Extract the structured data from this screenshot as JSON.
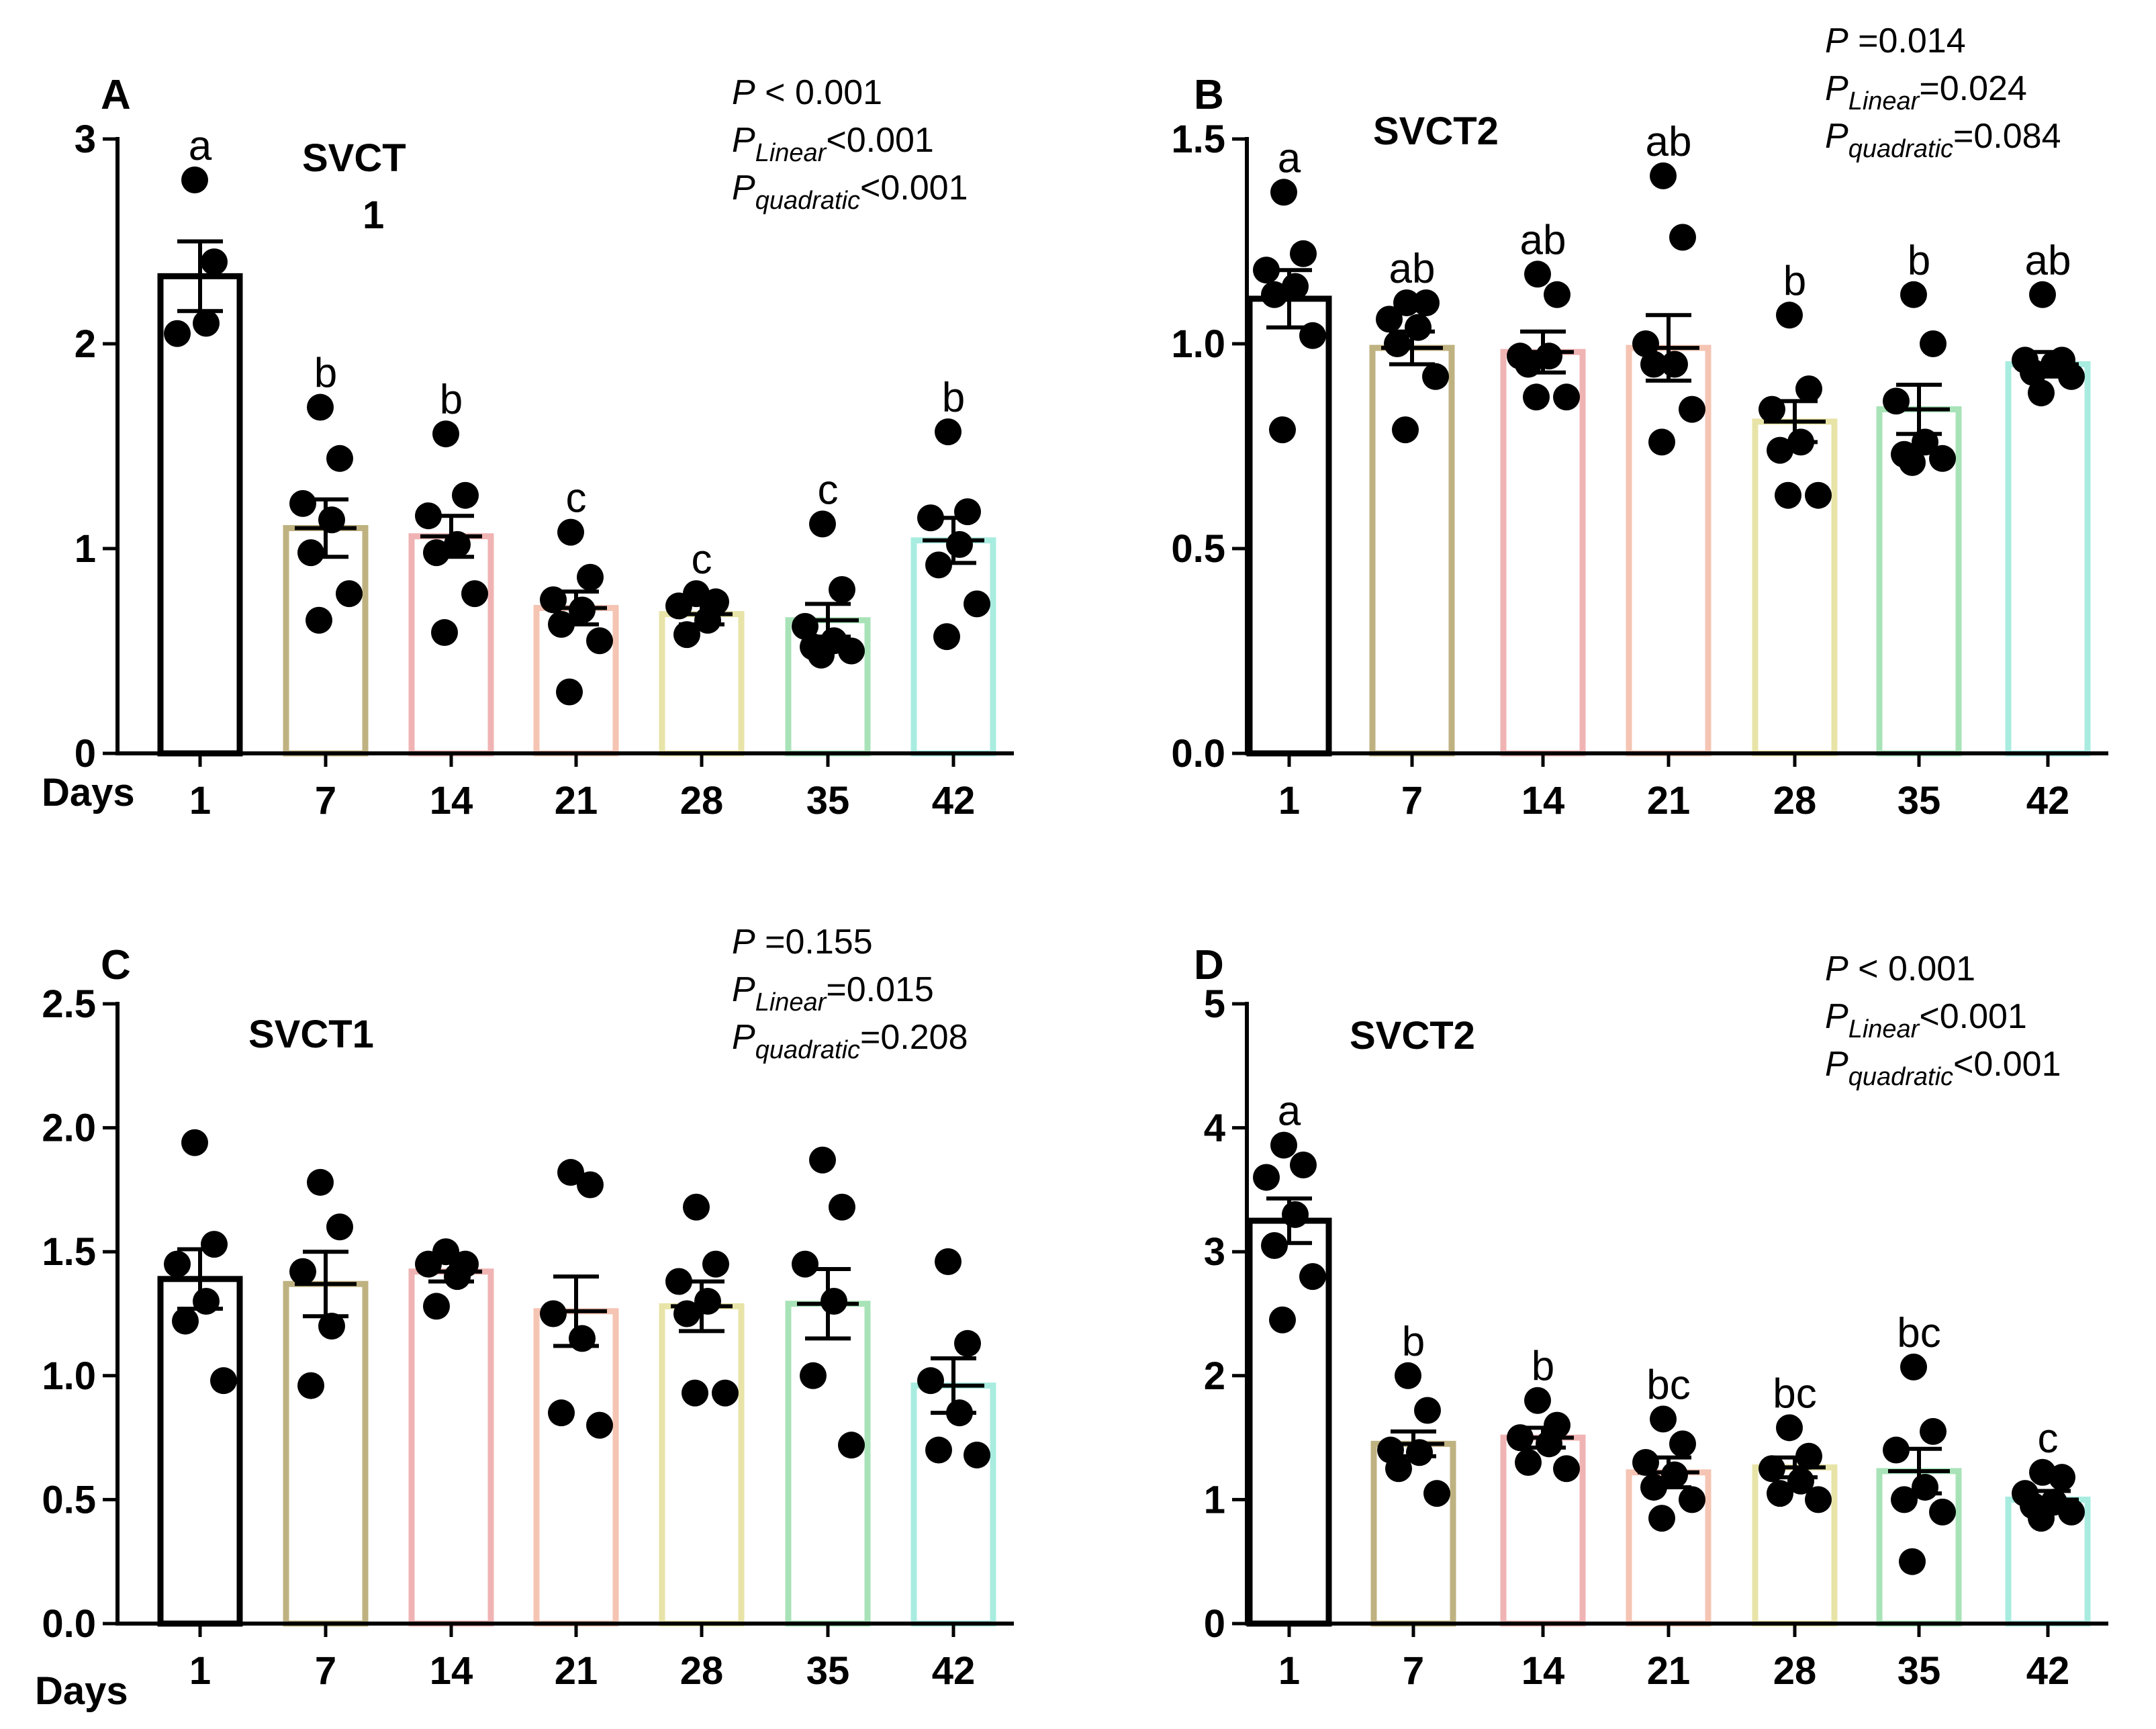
{
  "chart_data": [
    {
      "panel": "A",
      "type": "bar",
      "title": "SVCT",
      "title_line2": "1",
      "xlabel": "Days",
      "categories": [
        "1",
        "7",
        "14",
        "21",
        "28",
        "35",
        "42"
      ],
      "ylim": [
        0,
        3
      ],
      "yticks": [
        "0",
        "1",
        "2",
        "3"
      ],
      "yticks_values": [
        0,
        1,
        2,
        3
      ],
      "means": [
        2.33,
        1.1,
        1.06,
        0.71,
        0.68,
        0.65,
        1.04
      ],
      "sem": [
        0.17,
        0.14,
        0.1,
        0.08,
        0.05,
        0.08,
        0.11
      ],
      "points": [
        [
          2.8,
          2.4,
          2.05,
          2.1
        ],
        [
          1.69,
          1.44,
          1.22,
          1.14,
          0.98,
          0.78,
          0.65
        ],
        [
          1.56,
          1.26,
          1.16,
          1.02,
          0.98,
          0.78,
          0.59
        ],
        [
          1.08,
          0.86,
          0.75,
          0.7,
          0.63,
          0.55,
          0.3
        ],
        [
          0.78,
          0.74,
          0.72,
          0.65,
          0.58
        ],
        [
          1.12,
          0.8,
          0.62,
          0.55,
          0.52,
          0.5,
          0.48
        ],
        [
          1.57,
          1.18,
          1.15,
          1.02,
          0.92,
          0.73,
          0.57
        ]
      ],
      "letters": [
        "a",
        "b",
        "b",
        "c",
        "c",
        "c",
        "b"
      ],
      "stats": {
        "p_main": "< 0.001",
        "p_linear": "<0.001",
        "p_quadratic": "<0.001"
      }
    },
    {
      "panel": "B",
      "type": "bar",
      "title": "SVCT2",
      "xlabel": "",
      "categories": [
        "1",
        "7",
        "14",
        "21",
        "28",
        "35",
        "42"
      ],
      "ylim": [
        0,
        1.5
      ],
      "yticks": [
        "0.0",
        "0.5",
        "1.0",
        "1.5"
      ],
      "yticks_values": [
        0,
        0.5,
        1.0,
        1.5
      ],
      "means": [
        1.11,
        0.99,
        0.98,
        0.99,
        0.81,
        0.84,
        0.95
      ],
      "sem": [
        0.07,
        0.04,
        0.05,
        0.08,
        0.05,
        0.06,
        0.03
      ],
      "points": [
        [
          1.37,
          1.22,
          1.18,
          1.14,
          1.12,
          1.02,
          0.79
        ],
        [
          1.1,
          1.1,
          1.06,
          1.04,
          1.0,
          0.92,
          0.79
        ],
        [
          1.17,
          1.12,
          0.97,
          0.97,
          0.95,
          0.87,
          0.87
        ],
        [
          1.41,
          1.26,
          1.0,
          0.95,
          0.95,
          0.84,
          0.76
        ],
        [
          1.07,
          0.89,
          0.84,
          0.76,
          0.74,
          0.63,
          0.63
        ],
        [
          1.12,
          1.0,
          0.86,
          0.76,
          0.73,
          0.72,
          0.71
        ],
        [
          1.12,
          0.96,
          0.96,
          0.95,
          0.93,
          0.92,
          0.88
        ]
      ],
      "letters": [
        "a",
        "ab",
        "ab",
        "ab",
        "b",
        "b",
        "ab"
      ],
      "stats": {
        "p_main": "=0.014",
        "p_linear": "=0.024",
        "p_quadratic": "=0.084"
      }
    },
    {
      "panel": "C",
      "type": "bar",
      "title": "SVCT1",
      "xlabel": "Days",
      "categories": [
        "1",
        "7",
        "14",
        "21",
        "28",
        "35",
        "42"
      ],
      "ylim": [
        0,
        2.5
      ],
      "yticks": [
        "0.0",
        "0.5",
        "1.0",
        "1.5",
        "2.0",
        "2.5"
      ],
      "yticks_values": [
        0,
        0.5,
        1.0,
        1.5,
        2.0,
        2.5
      ],
      "means": [
        1.39,
        1.37,
        1.42,
        1.26,
        1.28,
        1.29,
        0.96
      ],
      "sem": [
        0.12,
        0.13,
        0.04,
        0.14,
        0.1,
        0.14,
        0.11
      ],
      "points": [
        [
          1.94,
          1.53,
          1.45,
          1.3,
          1.22,
          0.98
        ],
        [
          1.78,
          1.6,
          1.42,
          1.2,
          0.96
        ],
        [
          1.5,
          1.45,
          1.45,
          1.4,
          1.28
        ],
        [
          1.82,
          1.77,
          1.25,
          1.15,
          0.85,
          0.8
        ],
        [
          1.68,
          1.45,
          1.38,
          1.3,
          1.25,
          0.93,
          0.93
        ],
        [
          1.87,
          1.68,
          1.45,
          1.3,
          1.0,
          0.72
        ],
        [
          1.46,
          1.13,
          0.98,
          0.85,
          0.7,
          0.68
        ]
      ],
      "letters": [],
      "stats": {
        "p_main": "=0.155",
        "p_linear": "=0.015",
        "p_quadratic": "=0.208"
      }
    },
    {
      "panel": "D",
      "type": "bar",
      "title": "SVCT2",
      "xlabel": "",
      "categories": [
        "1",
        "7",
        "14",
        "21",
        "28",
        "35",
        "42"
      ],
      "ylim": [
        0,
        5
      ],
      "yticks": [
        "0",
        "1",
        "2",
        "3",
        "4",
        "5"
      ],
      "yticks_values": [
        0,
        1,
        2,
        3,
        4,
        5
      ],
      "means": [
        3.25,
        1.45,
        1.5,
        1.22,
        1.26,
        1.23,
        1.0
      ],
      "sem": [
        0.18,
        0.1,
        0.08,
        0.12,
        0.08,
        0.18,
        0.07
      ],
      "points": [
        [
          3.86,
          3.7,
          3.6,
          3.3,
          3.05,
          2.8,
          2.45
        ],
        [
          2.0,
          1.72,
          1.4,
          1.38,
          1.25,
          1.05
        ],
        [
          1.8,
          1.6,
          1.5,
          1.45,
          1.3,
          1.25
        ],
        [
          1.65,
          1.45,
          1.3,
          1.2,
          1.1,
          1.0,
          0.85
        ],
        [
          1.58,
          1.35,
          1.25,
          1.15,
          1.05,
          1.0
        ],
        [
          2.07,
          1.55,
          1.4,
          1.1,
          1.0,
          0.9,
          0.5
        ],
        [
          1.22,
          1.18,
          1.05,
          0.98,
          0.95,
          0.9,
          0.85
        ]
      ],
      "letters": [
        "a",
        "b",
        "b",
        "bc",
        "bc",
        "bc",
        "c"
      ],
      "stats": {
        "p_main": "< 0.001",
        "p_linear": "<0.001",
        "p_quadratic": "<0.001"
      }
    }
  ],
  "bar_colors": [
    "#000000",
    "#bfb281",
    "#f0b3b3",
    "#f5c4b3",
    "#e8e4a8",
    "#a8e3b8",
    "#a8ece0"
  ],
  "stat_labels": {
    "p": "P",
    "linear_sub": "Linear",
    "quadratic_sub": "quadratic"
  }
}
